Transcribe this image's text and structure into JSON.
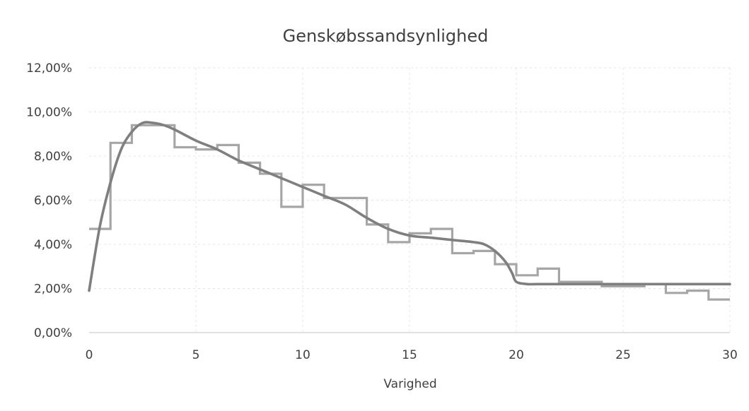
{
  "chart_data": {
    "type": "line",
    "title": "Genskøbssandsynlighed",
    "xlabel": "Varighed",
    "ylabel": "",
    "xlim": [
      0,
      30
    ],
    "ylim": [
      0,
      0.12
    ],
    "x_ticks": [
      "0",
      "5",
      "10",
      "15",
      "20",
      "25",
      "30"
    ],
    "y_ticks": [
      "0,00%",
      "2,00%",
      "4,00%",
      "6,00%",
      "8,00%",
      "10,00%",
      "12,00%"
    ],
    "grid": true,
    "legend": "none",
    "series": [
      {
        "style": "step",
        "color": "#a6a6a6",
        "x": [
          0,
          1,
          2,
          3,
          4,
          5,
          6,
          7,
          8,
          9,
          10,
          11,
          12,
          13,
          14,
          15,
          16,
          17,
          18,
          19,
          20,
          21,
          22,
          23,
          24,
          25,
          26,
          27,
          28,
          29
        ],
        "values": [
          0.047,
          0.086,
          0.094,
          0.094,
          0.084,
          0.083,
          0.085,
          0.077,
          0.072,
          0.057,
          0.067,
          0.061,
          0.061,
          0.049,
          0.041,
          0.045,
          0.047,
          0.036,
          0.037,
          0.031,
          0.026,
          0.029,
          0.023,
          0.023,
          0.021,
          0.021,
          0.022,
          0.018,
          0.019,
          0.015
        ]
      },
      {
        "style": "smooth",
        "color": "#7f7f7f",
        "x": [
          0,
          0.5,
          1,
          1.5,
          2,
          2.5,
          3,
          3.5,
          4,
          5,
          6,
          7,
          8,
          9,
          10,
          11,
          12,
          13,
          14,
          15,
          16,
          17,
          18,
          18.5,
          19,
          19.5,
          19.8,
          20,
          20.5,
          21,
          22,
          25,
          30
        ],
        "values": [
          0.019,
          0.048,
          0.068,
          0.083,
          0.091,
          0.095,
          0.095,
          0.094,
          0.092,
          0.087,
          0.083,
          0.078,
          0.074,
          0.07,
          0.066,
          0.062,
          0.058,
          0.052,
          0.047,
          0.044,
          0.043,
          0.042,
          0.041,
          0.04,
          0.037,
          0.032,
          0.027,
          0.023,
          0.022,
          0.022,
          0.022,
          0.022,
          0.022
        ]
      }
    ]
  }
}
